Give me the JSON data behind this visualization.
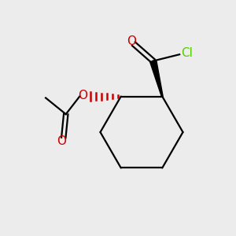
{
  "bg_color": "#ececec",
  "atom_colors": {
    "O": "#cc0000",
    "Cl": "#55cc00",
    "C": "#000000"
  },
  "bond_lw": 1.6,
  "font_size": 11
}
